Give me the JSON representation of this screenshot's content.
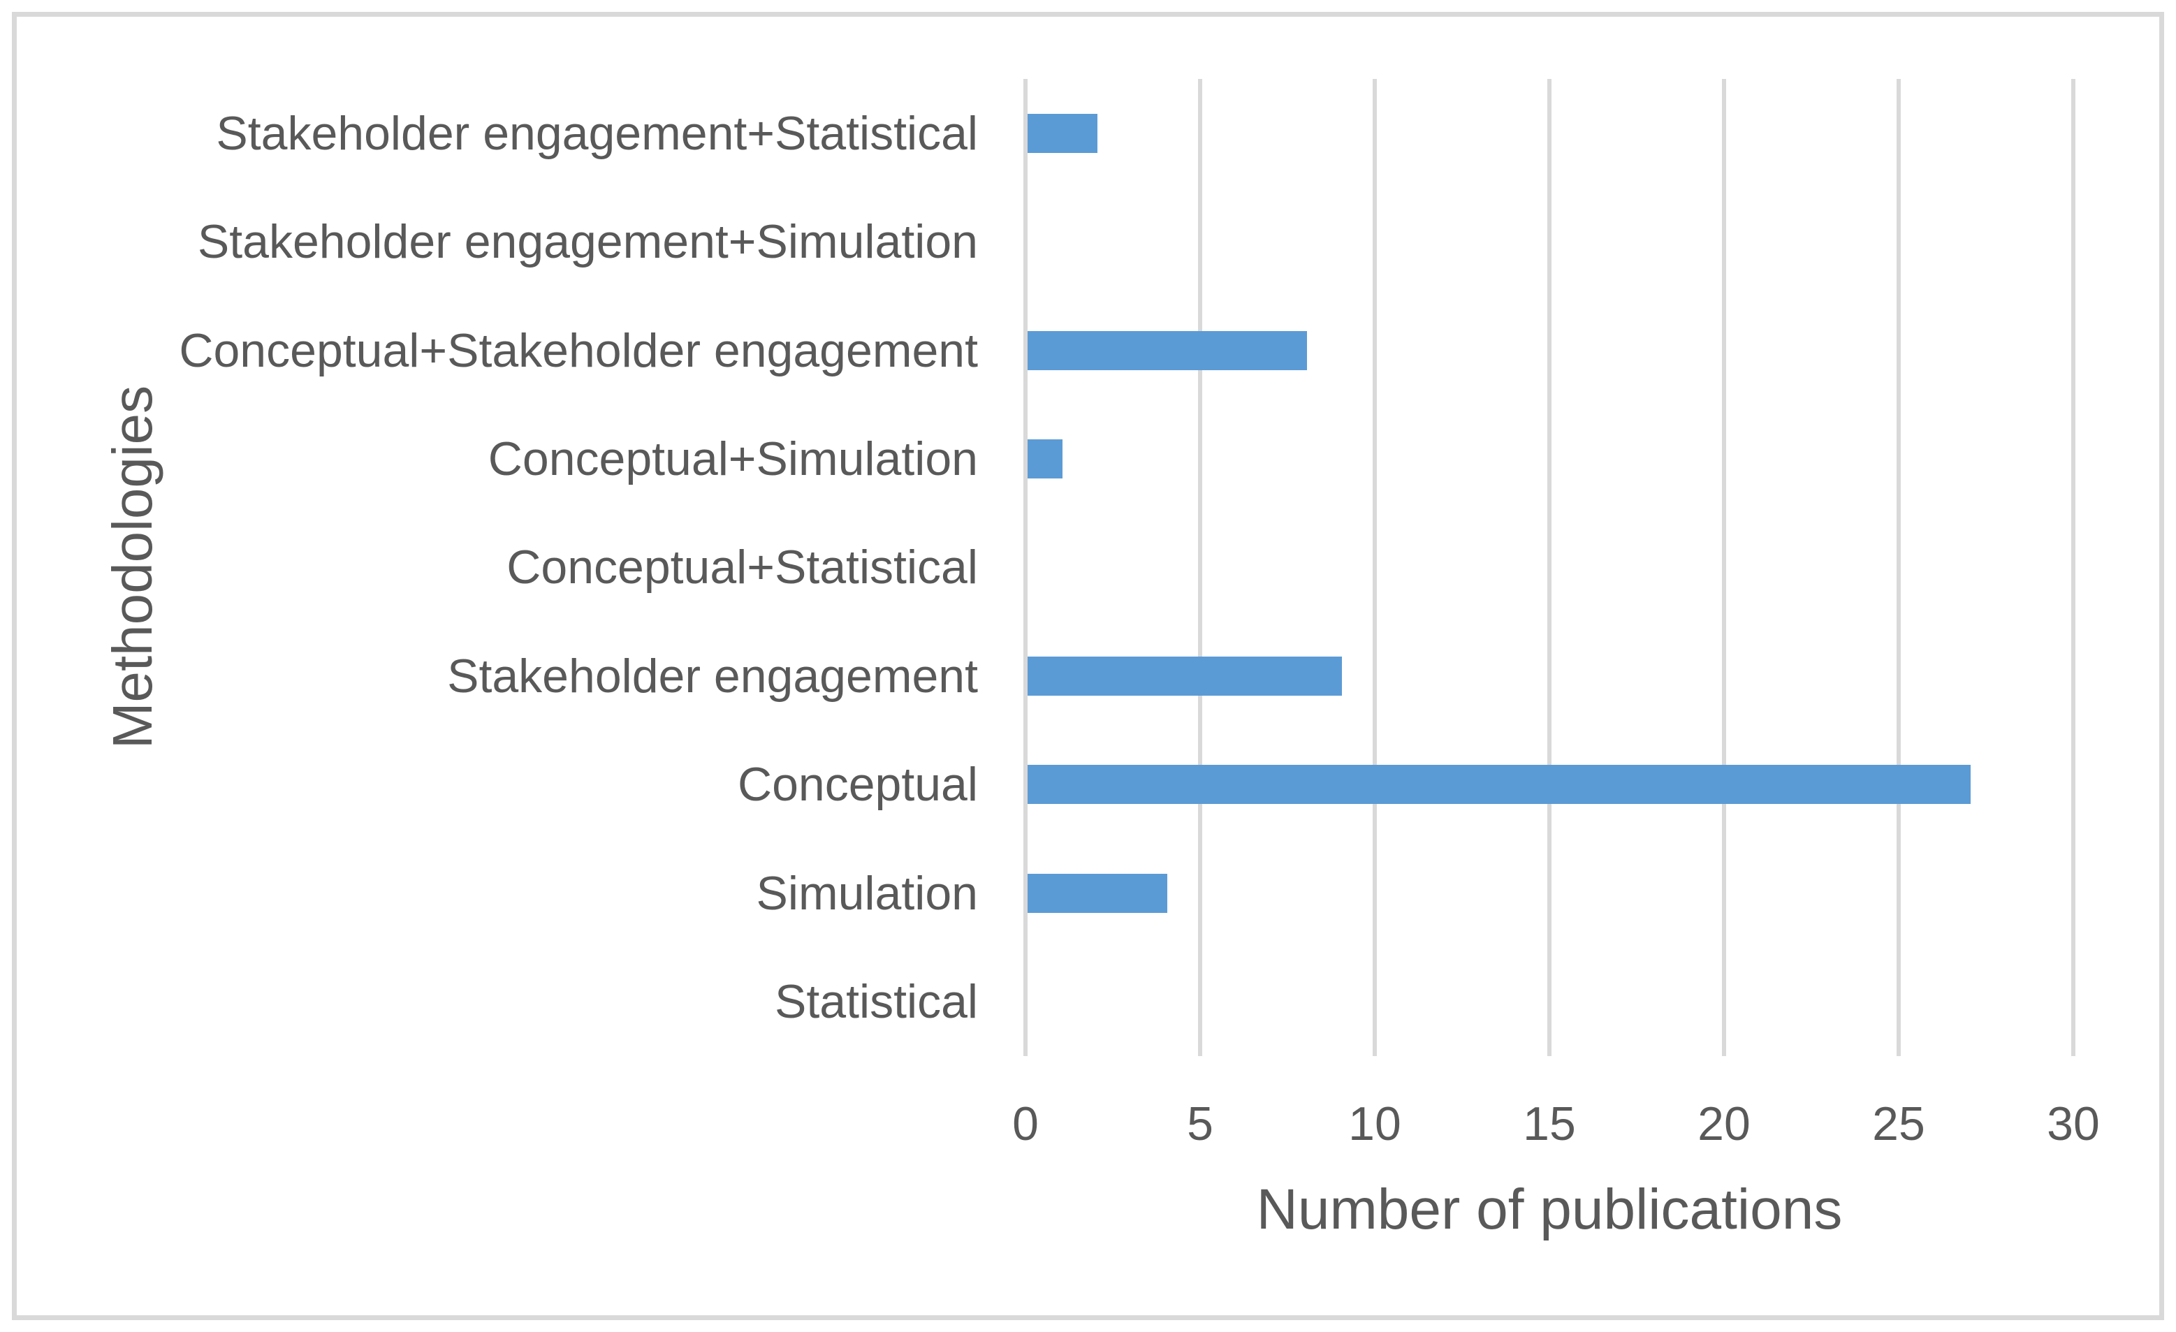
{
  "chart_data": {
    "type": "bar",
    "orientation": "horizontal",
    "title": "",
    "xlabel": "Number of publications",
    "ylabel": "Methodologies",
    "categories": [
      "Stakeholder engagement+Statistical",
      "Stakeholder engagement+Simulation",
      "Conceptual+Stakeholder engagement",
      "Conceptual+Simulation",
      "Conceptual+Statistical",
      "Stakeholder engagement",
      "Conceptual",
      "Simulation",
      "Statistical"
    ],
    "values": [
      2,
      0,
      8,
      1,
      0,
      9,
      27,
      4,
      0
    ],
    "xticks": [
      0,
      5,
      10,
      15,
      20,
      25,
      30
    ],
    "xlim": [
      0,
      30
    ],
    "grid": true,
    "legend": false,
    "colors": {
      "bar": "#5B9BD5",
      "gridline": "#D9D9D9",
      "text": "#595959",
      "frame_border": "#D9D9D9",
      "background": "#FFFFFF"
    }
  }
}
